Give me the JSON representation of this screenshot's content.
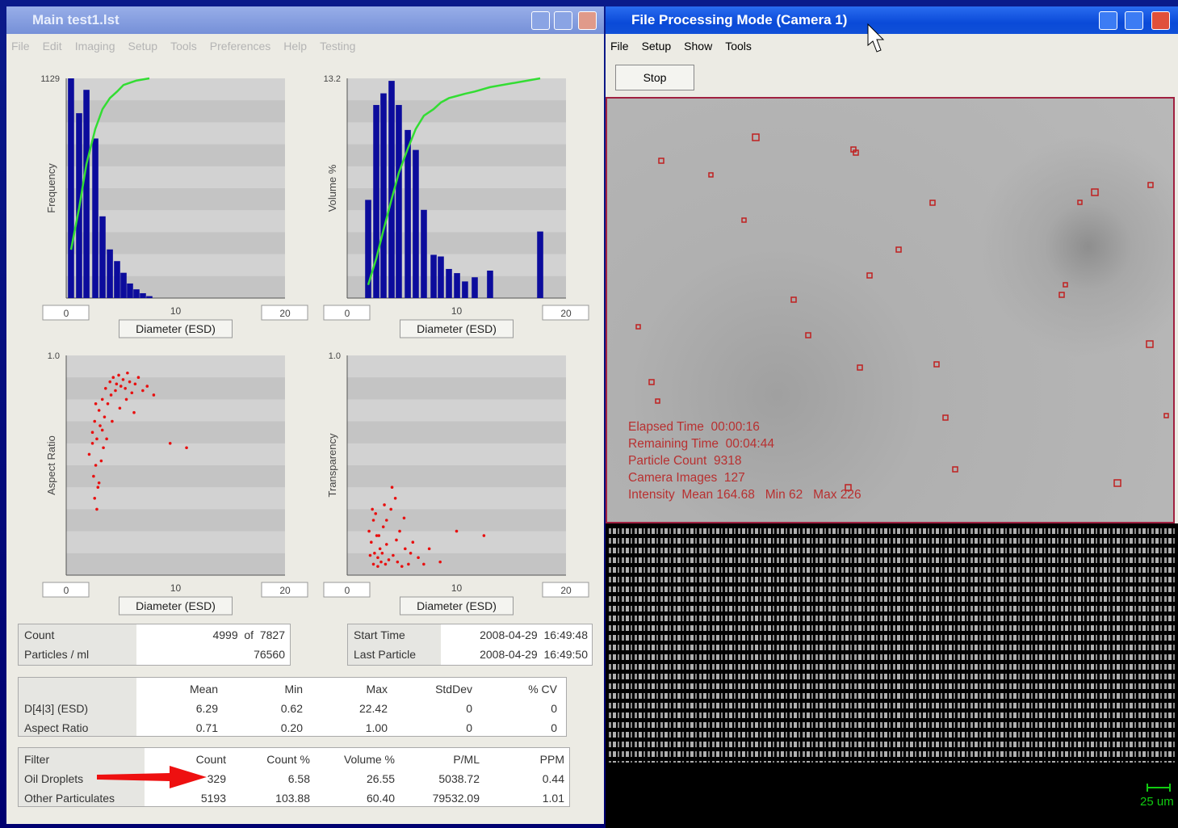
{
  "main_window": {
    "title": "Main  test1.lst",
    "menu": [
      "File",
      "Edit",
      "Imaging",
      "Setup",
      "Tools",
      "Preferences",
      "Help",
      "Testing"
    ],
    "charts": [
      {
        "type": "histogram",
        "y_label": "Frequency",
        "x_label": "Diameter (ESD)",
        "xlim": [
          0,
          20
        ],
        "xticks": [
          0,
          10,
          20
        ],
        "ylim": [
          0,
          1129
        ],
        "yticks": [
          1129
        ],
        "y2lim": [
          0,
          100
        ],
        "bar_color": "#0c0c9c",
        "line_color": "#33dd33",
        "x": [
          0.44,
          1.18,
          1.85,
          2.66,
          3.32,
          3.99,
          4.65,
          5.24,
          5.83,
          6.42,
          7.01,
          7.6
        ],
        "values": [
          1129,
          950,
          1070,
          820,
          420,
          250,
          190,
          130,
          75,
          45,
          25,
          10
        ],
        "cumulative": [
          22,
          41,
          61,
          77,
          86,
          91,
          94,
          97,
          98,
          99,
          99.5,
          100
        ]
      },
      {
        "type": "histogram",
        "y_label": "Volume %",
        "x_label": "Diameter (ESD)",
        "xlim": [
          0,
          20
        ],
        "xticks": [
          0,
          10,
          20
        ],
        "ylim": [
          0,
          13.2
        ],
        "yticks": [
          13.2
        ],
        "y2lim": [
          0,
          100
        ],
        "bar_color": "#0c0c9c",
        "line_color": "#33dd33",
        "x": [
          1.92,
          2.66,
          3.32,
          4.06,
          4.72,
          5.54,
          6.27,
          7.01,
          7.9,
          8.56,
          9.3,
          10.04,
          10.77,
          11.66,
          13.06,
          17.64
        ],
        "values": [
          5.9,
          11.6,
          12.3,
          13.05,
          11.6,
          10.1,
          8.9,
          5.3,
          2.6,
          2.5,
          1.75,
          1.5,
          1.0,
          1.25,
          1.65,
          4.0
        ],
        "cumulative": [
          6,
          18,
          31,
          45,
          57,
          68,
          77,
          83,
          86,
          89,
          91,
          92,
          93,
          94,
          96,
          100
        ]
      },
      {
        "type": "scatter",
        "y_label": "Aspect Ratio",
        "x_label": "Diameter (ESD)",
        "xlim": [
          0,
          20
        ],
        "xticks": [
          0,
          10,
          20
        ],
        "ylim": [
          0,
          1.0
        ],
        "yticks": [
          {
            "value": 1,
            "label": "1.0"
          }
        ],
        "color": "#e81010",
        "x": [
          2.1,
          2.4,
          2.6,
          2.8,
          3.0,
          3.1,
          3.3,
          3.5,
          3.6,
          3.8,
          4.0,
          4.1,
          4.3,
          4.5,
          4.6,
          4.8,
          5.0,
          5.2,
          5.4,
          5.6,
          5.8,
          6.0,
          6.3,
          6.6,
          7.0,
          7.4,
          2.5,
          2.7,
          2.9,
          3.2,
          3.4,
          2.6,
          2.8,
          3.0,
          2.4,
          2.7,
          3.3,
          3.7,
          4.2,
          4.9,
          5.5,
          6.2,
          8.0,
          9.5,
          11.0
        ],
        "y": [
          0.55,
          0.6,
          0.7,
          0.62,
          0.75,
          0.68,
          0.8,
          0.72,
          0.85,
          0.78,
          0.88,
          0.82,
          0.9,
          0.84,
          0.87,
          0.91,
          0.86,
          0.89,
          0.85,
          0.92,
          0.88,
          0.83,
          0.87,
          0.9,
          0.84,
          0.86,
          0.45,
          0.5,
          0.4,
          0.52,
          0.58,
          0.35,
          0.3,
          0.42,
          0.65,
          0.78,
          0.66,
          0.62,
          0.7,
          0.76,
          0.8,
          0.74,
          0.82,
          0.6,
          0.58
        ]
      },
      {
        "type": "scatter",
        "y_label": "Transparency",
        "x_label": "Diameter (ESD)",
        "xlim": [
          0,
          20
        ],
        "xticks": [
          0,
          10,
          20
        ],
        "ylim": [
          0,
          1.0
        ],
        "yticks": [
          {
            "value": 1,
            "label": "1.0"
          }
        ],
        "color": "#e81010",
        "x": [
          2.0,
          2.2,
          2.4,
          2.5,
          2.7,
          2.8,
          3.0,
          3.1,
          3.3,
          3.5,
          3.6,
          3.8,
          4.0,
          4.2,
          4.4,
          4.6,
          4.8,
          5.0,
          5.3,
          5.6,
          6.0,
          6.5,
          7.0,
          2.3,
          2.6,
          2.9,
          3.2,
          3.4,
          2.1,
          2.4,
          2.8,
          3.6,
          4.1,
          4.5,
          5.2,
          5.8,
          7.5,
          8.5,
          10.0,
          12.5
        ],
        "y": [
          0.2,
          0.15,
          0.25,
          0.1,
          0.18,
          0.08,
          0.12,
          0.06,
          0.22,
          0.05,
          0.14,
          0.07,
          0.3,
          0.09,
          0.35,
          0.06,
          0.2,
          0.04,
          0.12,
          0.05,
          0.15,
          0.08,
          0.05,
          0.3,
          0.28,
          0.18,
          0.1,
          0.32,
          0.09,
          0.05,
          0.04,
          0.25,
          0.4,
          0.16,
          0.26,
          0.1,
          0.12,
          0.06,
          0.2,
          0.18
        ]
      }
    ],
    "summary": {
      "rows": [
        [
          "Count",
          "4999  of  7827"
        ],
        [
          "Particles / ml",
          "76560"
        ]
      ]
    },
    "times": {
      "rows": [
        [
          "Start Time",
          "2008-04-29  16:49:48"
        ],
        [
          "Last Particle",
          "2008-04-29  16:49:50"
        ]
      ]
    },
    "statistics": {
      "header": [
        "Mean",
        "Min",
        "Max",
        "StdDev",
        "% CV"
      ],
      "rows": [
        {
          "label": "D[4|3] (ESD)",
          "cells": [
            "6.29",
            "0.62",
            "22.42",
            "0",
            "0"
          ]
        },
        {
          "label": "Aspect Ratio",
          "cells": [
            "0.71",
            "0.20",
            "1.00",
            "0",
            "0"
          ]
        }
      ]
    },
    "filters": {
      "header": [
        "Filter",
        "Count",
        "Count %",
        "Volume %",
        "P/ML",
        "PPM"
      ],
      "rows": [
        [
          "Oil Droplets",
          "329",
          "6.58",
          "26.55",
          "5038.72",
          "0.44"
        ],
        [
          "Other Particulates",
          "5193",
          "103.88",
          "60.40",
          "79532.09",
          "1.01"
        ]
      ]
    }
  },
  "camera_window": {
    "title": "File Processing Mode (Camera 1)",
    "menu": [
      "File",
      "Setup",
      "Show",
      "Tools"
    ],
    "button": "Stop",
    "overlay": [
      "Elapsed Time  00:00:16",
      "Remaining Time  00:04:44",
      "Particle Count  9318",
      "Camera Images  127",
      "Intensity  Mean 164.68   Min 62   Max 226"
    ],
    "scale_bar": "25 um"
  }
}
